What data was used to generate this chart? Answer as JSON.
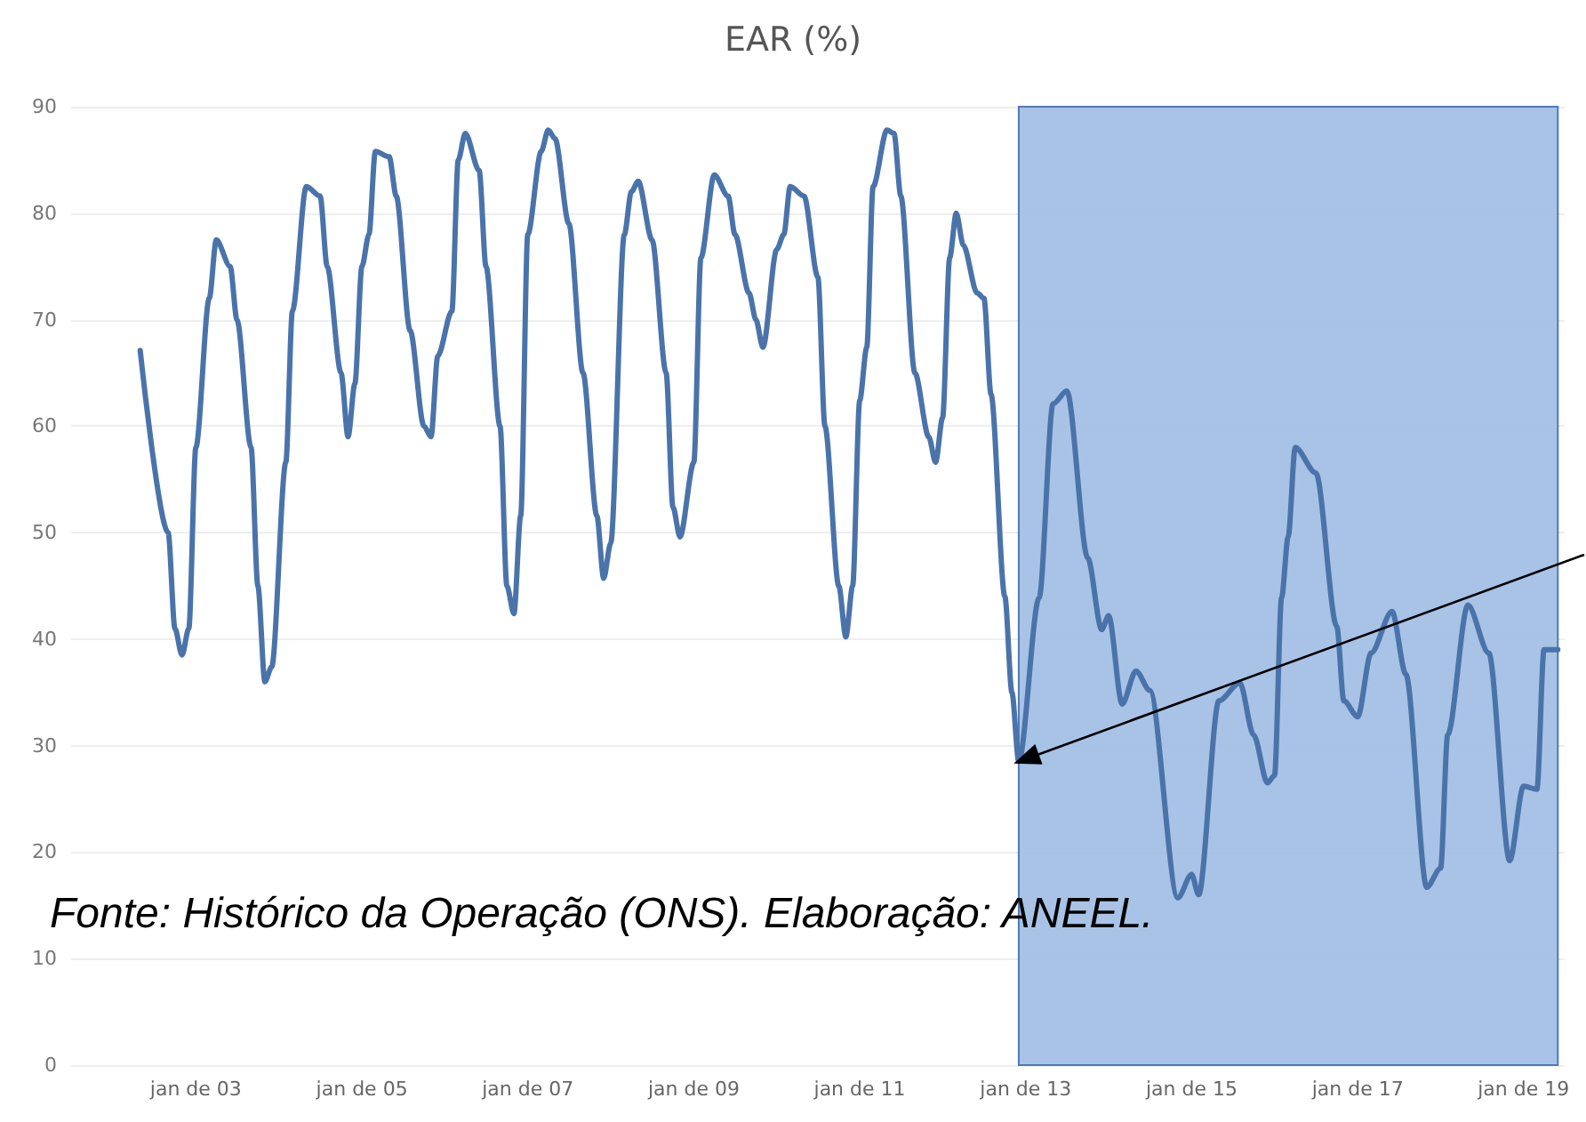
{
  "chart_data": {
    "type": "line",
    "title": "EAR (%)",
    "annotations": [
      "Fonte: Histórico da Operação (ONS). Elaboração: ANEEL."
    ],
    "x": [
      "2002-05",
      "2002-09",
      "2002-10",
      "2002-11",
      "2002-12",
      "2003-01",
      "2003-03",
      "2003-04",
      "2003-06",
      "2003-07",
      "2003-09",
      "2003-10",
      "2003-11",
      "2003-12",
      "2004-02",
      "2004-03",
      "2004-05",
      "2004-07",
      "2004-08",
      "2004-10",
      "2004-11",
      "2004-12",
      "2005-01",
      "2005-02",
      "2005-03",
      "2005-05",
      "2005-06",
      "2005-08",
      "2005-10",
      "2005-11",
      "2005-12",
      "2006-02",
      "2006-03",
      "2006-04",
      "2006-06",
      "2006-07",
      "2006-09",
      "2006-10",
      "2006-11",
      "2006-12",
      "2007-01",
      "2007-03",
      "2007-04",
      "2007-05",
      "2007-07",
      "2007-09",
      "2007-11",
      "2007-12",
      "2008-01",
      "2008-03",
      "2008-04",
      "2008-05",
      "2008-07",
      "2008-09",
      "2008-10",
      "2008-11",
      "2009-01",
      "2009-02",
      "2009-04",
      "2009-06",
      "2009-07",
      "2009-09",
      "2009-10",
      "2009-11",
      "2010-01",
      "2010-02",
      "2010-03",
      "2010-05",
      "2010-07",
      "2010-08",
      "2010-10",
      "2010-11",
      "2010-12",
      "2011-01",
      "2011-02",
      "2011-03",
      "2011-05",
      "2011-06",
      "2011-07",
      "2011-09",
      "2011-11",
      "2011-12",
      "2012-01",
      "2012-02",
      "2012-03",
      "2012-04",
      "2012-06",
      "2012-07",
      "2012-08",
      "2012-10",
      "2012-11",
      "2012-12",
      "2013-03",
      "2013-05",
      "2013-07",
      "2013-10",
      "2013-12",
      "2014-01",
      "2014-03",
      "2014-05",
      "2014-07",
      "2014-11",
      "2015-01",
      "2015-02",
      "2015-05",
      "2015-08",
      "2015-10",
      "2015-12",
      "2016-01",
      "2016-02",
      "2016-03",
      "2016-04",
      "2016-07",
      "2016-10",
      "2016-11",
      "2017-01",
      "2017-03",
      "2017-06",
      "2017-08",
      "2017-11",
      "2018-01",
      "2018-02",
      "2018-05",
      "2018-08",
      "2018-11",
      "2019-01",
      "2019-03",
      "2019-04",
      "2019-06"
    ],
    "series": [
      {
        "color": "#4a73aa",
        "values": [
          67.1,
          50,
          41,
          38.5,
          41,
          58,
          72,
          77.5,
          75,
          70,
          58,
          45,
          36,
          37.4,
          56.6,
          70.8,
          82.5,
          81.6,
          75,
          65,
          59,
          64,
          75,
          78,
          85.8,
          85.3,
          81.6,
          69,
          60,
          59,
          66.6,
          70.8,
          85,
          87.5,
          84,
          75,
          60,
          45,
          42.4,
          51.6,
          78,
          85.8,
          87.8,
          87,
          79,
          65,
          51.6,
          45.7,
          49,
          78,
          82,
          83,
          77.5,
          65,
          52.4,
          49.6,
          56.6,
          75.8,
          83.6,
          81.6,
          78,
          72.5,
          70,
          67.4,
          76.6,
          78,
          82.5,
          81.6,
          74,
          60,
          45,
          40.2,
          45,
          62.4,
          67.4,
          82.5,
          87.8,
          87.5,
          81.6,
          65,
          59,
          56.6,
          60.8,
          75.8,
          80,
          77,
          72.5,
          72,
          63,
          44,
          35,
          28.5,
          43.9,
          62.1,
          63.3,
          47.6,
          40.9,
          42.2,
          33.9,
          37,
          35.2,
          15.7,
          17.9,
          16,
          34.2,
          35.9,
          31,
          26.5,
          27.2,
          43.9,
          49.6,
          58,
          55.6,
          41.2,
          34.2,
          32.7,
          38.7,
          42.6,
          36.7,
          16.7,
          18.5,
          31,
          43.2,
          38.7,
          19.2,
          26.2,
          25.9,
          39,
          39
        ]
      }
    ],
    "xlim": [
      "2001-07",
      "2019-07"
    ],
    "xticks": [
      {
        "value": "2003-01",
        "label": "jan de 03"
      },
      {
        "value": "2005-01",
        "label": "jan de 05"
      },
      {
        "value": "2007-01",
        "label": "jan de 07"
      },
      {
        "value": "2009-01",
        "label": "jan de 09"
      },
      {
        "value": "2011-01",
        "label": "jan de 11"
      },
      {
        "value": "2013-01",
        "label": "jan de 13"
      },
      {
        "value": "2015-01",
        "label": "jan de 15"
      },
      {
        "value": "2017-01",
        "label": "jan de 17"
      },
      {
        "value": "2019-01",
        "label": "jan de 19"
      }
    ],
    "ylim": [
      0,
      90
    ],
    "yticks": [
      0,
      10,
      20,
      30,
      40,
      50,
      60,
      70,
      80,
      90
    ],
    "bands": [
      {
        "axis": "x",
        "from": "2012-12",
        "to": "2019-06",
        "color": "#9fbce3"
      }
    ],
    "grid": "y",
    "marker": "none",
    "line_style": "solid"
  }
}
